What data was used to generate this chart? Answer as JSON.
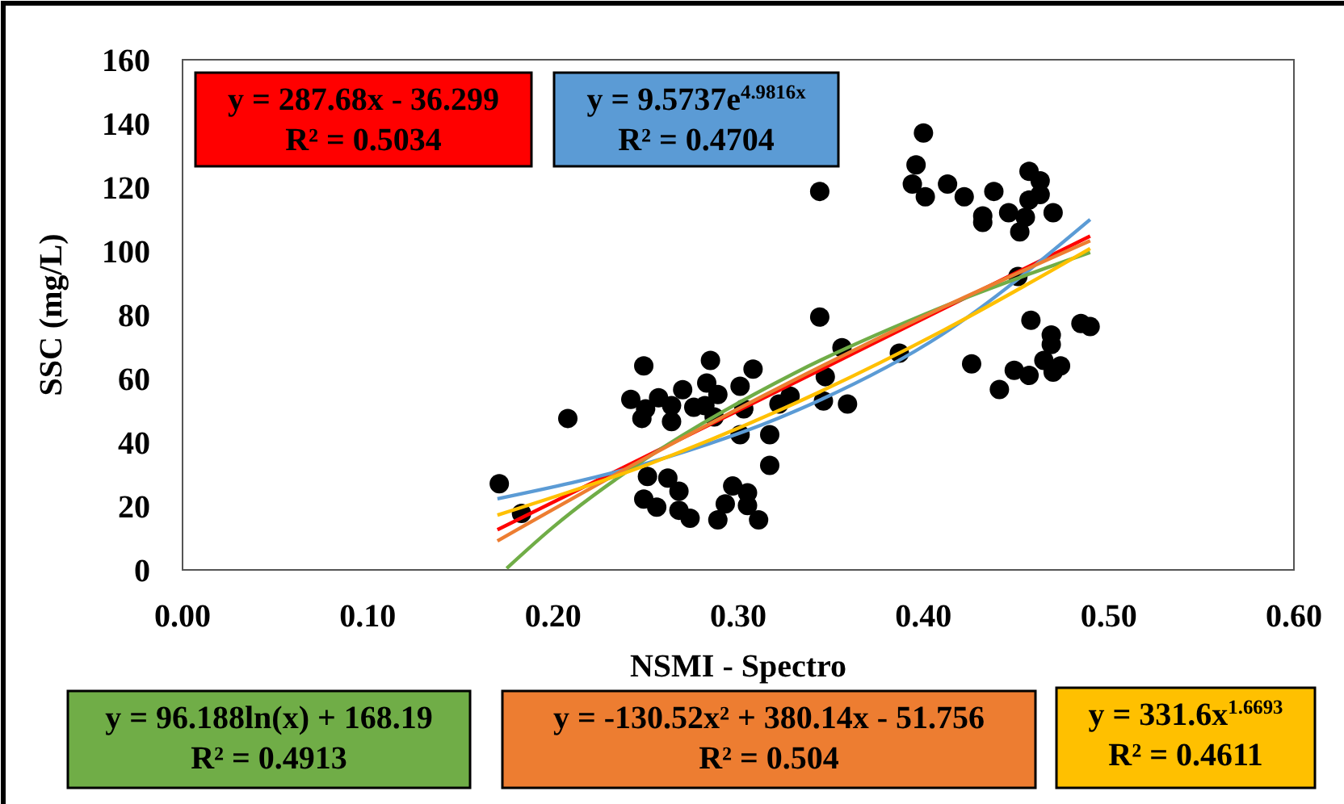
{
  "chart_data": {
    "type": "scatter",
    "xlabel": "NSMI - Spectro",
    "ylabel": "SSC (mg/L)",
    "xlim": [
      0,
      0.6
    ],
    "xticks": [
      {
        "value": 0,
        "label": "0.00"
      },
      {
        "value": 0.1,
        "label": "0.10"
      },
      {
        "value": 0.2,
        "label": "0.20"
      },
      {
        "value": 0.3,
        "label": "0.30"
      },
      {
        "value": 0.4,
        "label": "0.40"
      },
      {
        "value": 0.5,
        "label": "0.50"
      },
      {
        "value": 0.6,
        "label": "0.60"
      }
    ],
    "ylim": [
      0,
      160
    ],
    "yticks": [
      0,
      20,
      40,
      60,
      80,
      100,
      120,
      140,
      160
    ],
    "grid": false,
    "series": [
      {
        "marker": "circle",
        "color": "#000000",
        "x": [
          0.171,
          0.183,
          0.208,
          0.249,
          0.242,
          0.25,
          0.248,
          0.257,
          0.264,
          0.264,
          0.27,
          0.276,
          0.285,
          0.283,
          0.289,
          0.282,
          0.287,
          0.301,
          0.308,
          0.303,
          0.301,
          0.317,
          0.317,
          0.322,
          0.328,
          0.347,
          0.346,
          0.359,
          0.356,
          0.251,
          0.262,
          0.268,
          0.249,
          0.256,
          0.268,
          0.274,
          0.289,
          0.293,
          0.297,
          0.305,
          0.305,
          0.311,
          0.344,
          0.344,
          0.387,
          0.4,
          0.396,
          0.394,
          0.401,
          0.413,
          0.422,
          0.432,
          0.432,
          0.438,
          0.446,
          0.457,
          0.463,
          0.457,
          0.463,
          0.455,
          0.452,
          0.47,
          0.451,
          0.426,
          0.441,
          0.449,
          0.457,
          0.458,
          0.469,
          0.469,
          0.465,
          0.47,
          0.474,
          0.485,
          0.49
        ],
        "values": [
          27,
          17.7,
          47.5,
          64,
          53.5,
          50.5,
          47.5,
          54,
          51.5,
          46.5,
          56.5,
          51,
          65.7,
          58.6,
          55,
          51.5,
          48,
          57.6,
          63,
          50.5,
          42.4,
          42.4,
          32.8,
          52,
          54.5,
          60.6,
          53,
          52,
          69.7,
          29.3,
          28.8,
          24.7,
          22.2,
          19.7,
          18.7,
          16.2,
          15.7,
          20.7,
          26.3,
          24.2,
          20.2,
          15.7,
          79.3,
          118.7,
          68,
          137,
          127,
          121,
          117,
          121,
          117,
          111,
          109,
          118.7,
          112,
          125,
          122,
          116,
          117.7,
          110.6,
          106,
          112,
          92,
          64.6,
          56.6,
          62.6,
          61,
          78.3,
          73.7,
          70.7,
          65.7,
          62,
          64,
          77.3,
          76.3
        ]
      },
      {
        "type": "line",
        "color": "#ff0000",
        "x": [
          0.17,
          0.25,
          0.33,
          0.41,
          0.49
        ],
        "values": [
          12.6,
          35.6,
          58.6,
          81.7,
          104.7
        ]
      },
      {
        "type": "line",
        "color": "#5b9bd5",
        "x": [
          0.17,
          0.25,
          0.33,
          0.41,
          0.49
        ],
        "values": [
          22.3,
          33.3,
          49.6,
          73.8,
          109.9
        ]
      },
      {
        "type": "line",
        "color": "#70ad47",
        "x": [
          0.175,
          0.2,
          0.21,
          0.25,
          0.33,
          0.41,
          0.49
        ],
        "values": [
          0.5,
          13.4,
          18.1,
          34.8,
          61.6,
          82.4,
          99.6
        ]
      },
      {
        "type": "line",
        "color": "#ed7d31",
        "x": [
          0.17,
          0.25,
          0.33,
          0.41,
          0.49
        ],
        "values": [
          9.1,
          35.1,
          59.5,
          82.2,
          103.2
        ]
      },
      {
        "type": "line",
        "color": "#ffc000",
        "x": [
          0.17,
          0.25,
          0.33,
          0.41,
          0.49
        ],
        "values": [
          17.2,
          32.8,
          52.1,
          74.9,
          100.8
        ]
      }
    ],
    "annotations": [
      "y = 287.68x - 36.299\nR² = 0.5034",
      "y = 9.5737e$^{4.9816x}$\nR² = 0.4704",
      "y = 96.188ln(x) + 168.19\nR² = 0.4913",
      "y = -130.52x² + 380.14x - 51.756\nR² = 0.504",
      "y = 331.6x$^{1.6693}$\nR² = 0.4611"
    ]
  }
}
